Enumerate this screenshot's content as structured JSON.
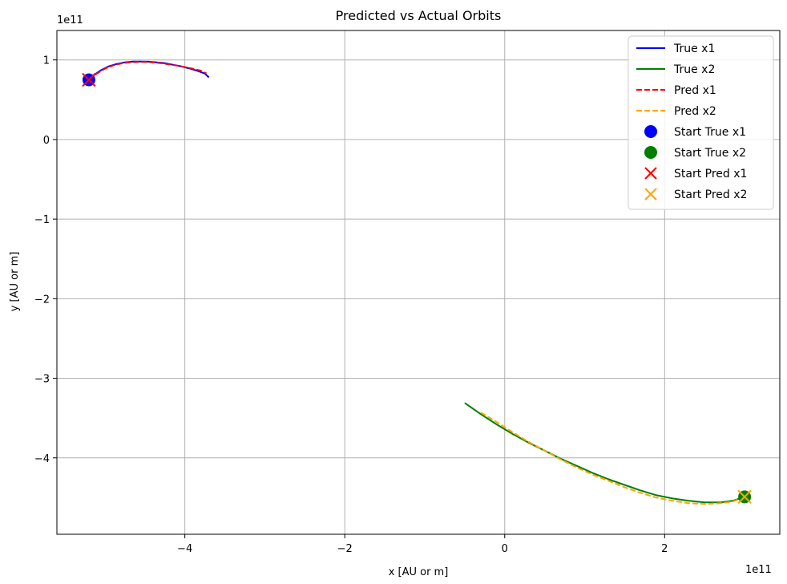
{
  "chart_data": {
    "type": "line",
    "title": "Predicted vs Actual Orbits",
    "xlabel": "x [AU or m]",
    "ylabel": "y [AU or m]",
    "x_offset_label": "1e11",
    "y_offset_label": "1e11",
    "xlim": [
      -5.6,
      3.44
    ],
    "ylim": [
      -4.96,
      1.37
    ],
    "x_ticks": [
      -4,
      -2,
      0,
      2
    ],
    "x_tick_labels": [
      "−4",
      "−2",
      "0",
      "2"
    ],
    "y_ticks": [
      1,
      0,
      -1,
      -2,
      -3,
      -4
    ],
    "y_tick_labels": [
      "1",
      "0",
      "−1",
      "−2",
      "−3",
      "−4"
    ],
    "grid": true,
    "legend_position": "top-right",
    "series": [
      {
        "name": "True x1",
        "kind": "line",
        "style": "solid",
        "color": "#0000ff",
        "x": [
          -5.22,
          -5.15,
          -5.05,
          -4.95,
          -4.85,
          -4.75,
          -4.65,
          -4.55,
          -4.45,
          -4.35,
          -4.25,
          -4.15,
          -4.05,
          -3.95,
          -3.85,
          -3.75,
          -3.7
        ],
        "y": [
          0.75,
          0.8,
          0.87,
          0.92,
          0.95,
          0.97,
          0.98,
          0.98,
          0.978,
          0.97,
          0.96,
          0.94,
          0.92,
          0.895,
          0.865,
          0.83,
          0.78
        ]
      },
      {
        "name": "True x2",
        "kind": "line",
        "style": "solid",
        "color": "#008000",
        "x": [
          -0.5,
          -0.3,
          -0.1,
          0.1,
          0.3,
          0.5,
          0.7,
          0.9,
          1.1,
          1.3,
          1.5,
          1.7,
          1.9,
          2.1,
          2.3,
          2.5,
          2.7,
          2.85,
          3.0
        ],
        "y": [
          -3.31,
          -3.45,
          -3.58,
          -3.7,
          -3.81,
          -3.91,
          -4.01,
          -4.1,
          -4.19,
          -4.27,
          -4.34,
          -4.41,
          -4.47,
          -4.51,
          -4.54,
          -4.56,
          -4.56,
          -4.54,
          -4.49
        ]
      },
      {
        "name": "Pred x1",
        "kind": "line",
        "style": "dashed",
        "color": "#ff0000",
        "x": [
          -5.2,
          -5.1,
          -5.0,
          -4.9,
          -4.8,
          -4.7,
          -4.6,
          -4.5,
          -4.4,
          -4.3,
          -4.2,
          -4.1,
          -4.0,
          -3.9,
          -3.8,
          -3.73
        ],
        "y": [
          0.76,
          0.83,
          0.89,
          0.93,
          0.955,
          0.97,
          0.975,
          0.975,
          0.97,
          0.96,
          0.945,
          0.93,
          0.91,
          0.89,
          0.865,
          0.83
        ]
      },
      {
        "name": "Pred x2",
        "kind": "line",
        "style": "dashed",
        "color": "#ffa500",
        "x": [
          -0.3,
          -0.1,
          0.1,
          0.3,
          0.5,
          0.7,
          0.9,
          1.1,
          1.3,
          1.5,
          1.7,
          1.9,
          2.1,
          2.3,
          2.5,
          2.7,
          2.85,
          3.0
        ],
        "y": [
          -3.43,
          -3.55,
          -3.68,
          -3.8,
          -3.91,
          -4.02,
          -4.12,
          -4.21,
          -4.29,
          -4.37,
          -4.44,
          -4.5,
          -4.54,
          -4.57,
          -4.58,
          -4.57,
          -4.55,
          -4.49
        ]
      },
      {
        "name": "Start True x1",
        "kind": "marker",
        "marker": "circle",
        "color": "#0000ff",
        "x": [
          -5.2
        ],
        "y": [
          0.75
        ]
      },
      {
        "name": "Start True x2",
        "kind": "marker",
        "marker": "circle",
        "color": "#008000",
        "x": [
          3.0
        ],
        "y": [
          -4.49
        ]
      },
      {
        "name": "Start Pred x1",
        "kind": "marker",
        "marker": "x",
        "color": "#ff0000",
        "x": [
          -5.2
        ],
        "y": [
          0.75
        ]
      },
      {
        "name": "Start Pred x2",
        "kind": "marker",
        "marker": "x",
        "color": "#ffa500",
        "x": [
          3.0
        ],
        "y": [
          -4.49
        ]
      }
    ]
  }
}
